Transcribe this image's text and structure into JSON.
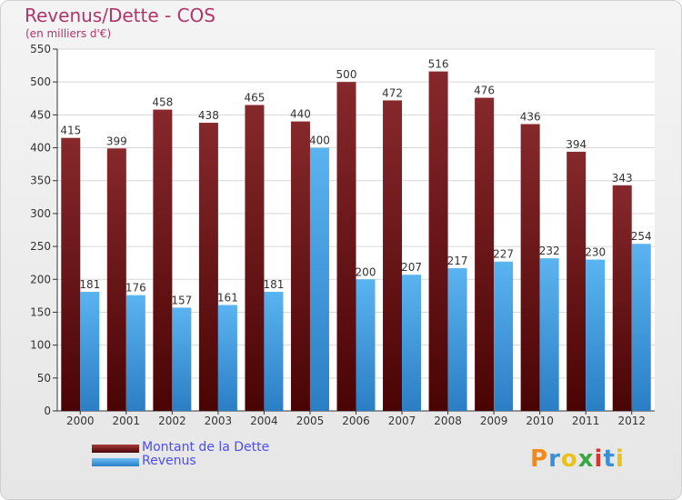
{
  "title": "Revenus/Dette - COS",
  "subtitle": "(en milliers d'€)",
  "logo_text": "Proxiti",
  "colors": {
    "dette": "#6e1a1a",
    "revenus": "#4da6e8",
    "title": "#b0366a",
    "legend": "#4d4df0"
  },
  "chart_data": {
    "type": "bar",
    "title": "Revenus/Dette - COS",
    "ylabel": "(en milliers d'€)",
    "xlabel": "",
    "categories": [
      "2000",
      "2001",
      "2002",
      "2003",
      "2004",
      "2005",
      "2006",
      "2007",
      "2008",
      "2009",
      "2010",
      "2011",
      "2012"
    ],
    "series": [
      {
        "name": "Montant de la Dette",
        "values": [
          415,
          399,
          458,
          438,
          465,
          440,
          500,
          472,
          516,
          476,
          436,
          394,
          343
        ]
      },
      {
        "name": "Revenus",
        "values": [
          181,
          176,
          157,
          161,
          181,
          400,
          200,
          207,
          217,
          227,
          232,
          230,
          254
        ]
      }
    ],
    "ylim": [
      0,
      550
    ],
    "yticks": [
      0,
      50,
      100,
      150,
      200,
      250,
      300,
      350,
      400,
      450,
      500,
      550
    ],
    "grid": true,
    "legend": "bottom-left"
  }
}
